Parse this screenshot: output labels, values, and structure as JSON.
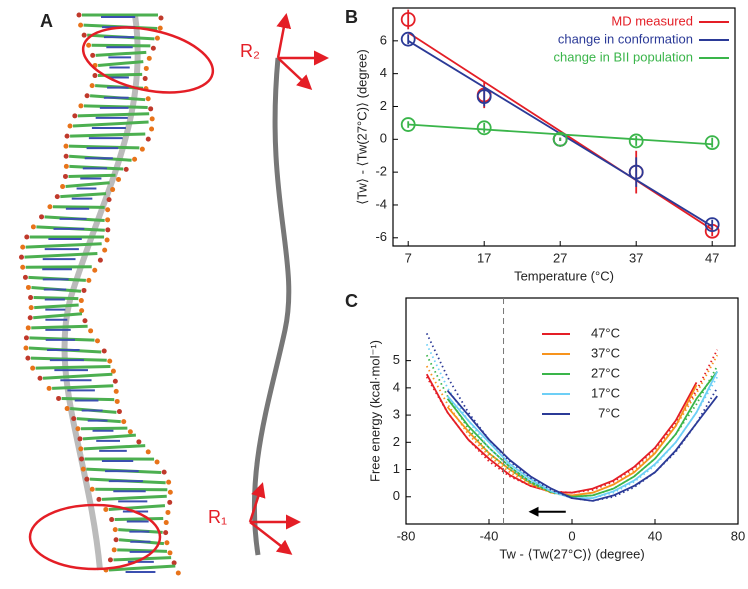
{
  "panel_labels": [
    "A",
    "B",
    "C"
  ],
  "frame_labels": [
    "R₂",
    "R₁"
  ],
  "chart_data": [
    {
      "type": "line",
      "ylabel": "⟨Tw⟩ - ⟨Tw(27°C)⟩ (degree)",
      "xlabel": "Temperature (°C)",
      "x": [
        7,
        17,
        27,
        37,
        47
      ],
      "xlim": [
        5,
        50
      ],
      "ylim": [
        -6.5,
        8
      ],
      "xticks": [
        7,
        17,
        27,
        37,
        47
      ],
      "yticks": [
        -6,
        -4,
        -2,
        0,
        2,
        4,
        6
      ],
      "legend": "upper right",
      "series": [
        {
          "name": "MD measured",
          "color": "#e41e26",
          "values": [
            7.3,
            2.7,
            0,
            -2.0,
            -5.6
          ],
          "errors": [
            0.6,
            0.8,
            0.1,
            1.3,
            0.3
          ],
          "fit": [
            6.5,
            -5.5
          ]
        },
        {
          "name": "change in conformation",
          "color": "#2b3a97",
          "values": [
            6.1,
            2.6,
            0,
            -2.0,
            -5.2
          ],
          "errors": [
            0.3,
            0.6,
            0.1,
            0.9,
            0.3
          ],
          "fit": [
            6.0,
            -5.3
          ]
        },
        {
          "name": "change in BII population",
          "color": "#3ab54a",
          "values": [
            0.9,
            0.7,
            0,
            -0.1,
            -0.2
          ],
          "errors": [
            0.2,
            0.3,
            0.1,
            0.3,
            0.3
          ],
          "fit": [
            0.9,
            -0.3
          ]
        }
      ]
    },
    {
      "type": "line",
      "ylabel": "Free energy (kcal·mol⁻¹)",
      "xlabel": "Tw - ⟨Tw(27°C)⟩ (degree)",
      "x": [
        -70,
        -60,
        -50,
        -40,
        -30,
        -20,
        -10,
        0,
        10,
        20,
        30,
        40,
        50,
        60,
        70
      ],
      "xlim": [
        -80,
        80
      ],
      "ylim": [
        -1,
        7.3
      ],
      "xticks": [
        -80,
        -40,
        0,
        40,
        80
      ],
      "yticks": [
        0,
        1,
        2,
        3,
        4,
        5
      ],
      "vline": -33,
      "legend": "upper center",
      "series": [
        {
          "name": "47°C",
          "color": "#e41e26",
          "values": [
            4.5,
            3.1,
            2.1,
            1.4,
            0.8,
            0.4,
            0.18,
            0.15,
            0.3,
            0.6,
            1.1,
            1.8,
            2.8,
            4.2,
            null
          ],
          "fit_values": [
            4.4,
            3.1,
            2.1,
            1.3,
            0.75,
            0.4,
            0.2,
            0.15,
            0.25,
            0.55,
            1.05,
            1.75,
            2.7,
            3.9,
            5.4
          ]
        },
        {
          "name": "37°C",
          "color": "#f7941d",
          "values": [
            null,
            3.3,
            2.4,
            1.6,
            1.0,
            0.5,
            0.15,
            0.05,
            0.15,
            0.45,
            0.9,
            1.6,
            2.6,
            4.1,
            null
          ],
          "fit_values": [
            4.8,
            3.4,
            2.3,
            1.5,
            0.9,
            0.45,
            0.15,
            0.05,
            0.15,
            0.45,
            0.95,
            1.65,
            2.6,
            3.8,
            5.2
          ]
        },
        {
          "name": "27°C",
          "color": "#3ab54a",
          "values": [
            null,
            3.6,
            2.6,
            1.8,
            1.1,
            0.55,
            0.18,
            0,
            0.05,
            0.3,
            0.75,
            1.4,
            2.3,
            3.6,
            4.6
          ],
          "fit_values": [
            5.2,
            3.7,
            2.5,
            1.6,
            1.0,
            0.5,
            0.15,
            0,
            0.05,
            0.3,
            0.75,
            1.4,
            2.3,
            3.4,
            4.8
          ]
        },
        {
          "name": "17°C",
          "color": "#6dcff6",
          "values": [
            null,
            3.7,
            2.8,
            2.0,
            1.2,
            0.65,
            0.2,
            -0.05,
            -0.05,
            0.2,
            0.6,
            1.2,
            2.0,
            3.1,
            4.6
          ],
          "fit_values": [
            5.6,
            4.0,
            2.8,
            1.8,
            1.1,
            0.55,
            0.2,
            -0.05,
            -0.05,
            0.15,
            0.55,
            1.15,
            2.0,
            3.1,
            4.4
          ]
        },
        {
          "name": "7°C",
          "color": "#2b3a97",
          "values": [
            null,
            3.9,
            3.0,
            2.1,
            1.35,
            0.75,
            0.3,
            -0.05,
            -0.15,
            0.05,
            0.4,
            0.9,
            1.7,
            2.7,
            3.7
          ],
          "fit_values": [
            6.0,
            4.4,
            3.1,
            2.1,
            1.3,
            0.7,
            0.25,
            -0.05,
            -0.15,
            0.0,
            0.35,
            0.9,
            1.65,
            2.7,
            4.0
          ]
        }
      ]
    }
  ]
}
